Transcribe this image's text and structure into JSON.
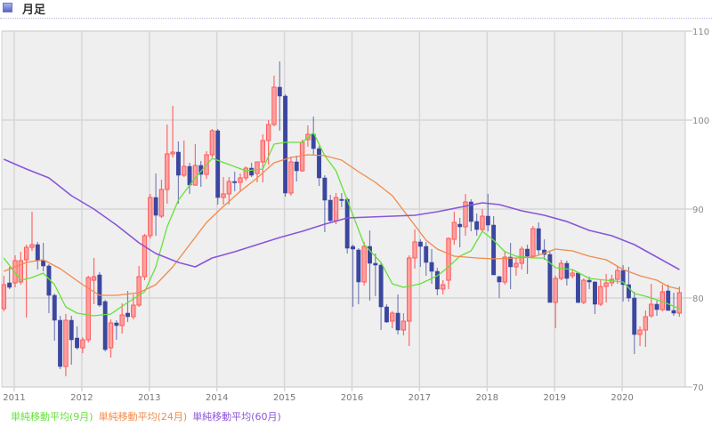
{
  "header": {
    "title": "月足",
    "icon": "chart-panel-icon"
  },
  "chart_data": {
    "type": "candlestick",
    "title": "月足",
    "period": "monthly",
    "start_month": "2010-11",
    "ylim": [
      70,
      110
    ],
    "yticks": [
      70,
      80,
      90,
      100,
      110
    ],
    "xtick_labels": [
      "2011",
      "2012",
      "2013",
      "2014",
      "2015",
      "2016",
      "2017",
      "2018",
      "2019",
      "2020"
    ],
    "grid": true,
    "colors": {
      "up": "#ff5a5a",
      "up_fill": "#ffa0a0",
      "down": "#3b479f",
      "ma9": "#66e03a",
      "ma24": "#f08a4b",
      "ma60": "#8a55d8"
    },
    "ohlc": [
      [
        78.8,
        82.5,
        78.5,
        81.5
      ],
      [
        81.7,
        83.5,
        81.0,
        81.2
      ],
      [
        81.7,
        84.8,
        81.2,
        84.2
      ],
      [
        81.8,
        85.2,
        81.5,
        84.2
      ],
      [
        84.3,
        86.0,
        77.8,
        85.7
      ],
      [
        85.7,
        89.7,
        85.3,
        86.0
      ],
      [
        86.0,
        86.3,
        83.2,
        84.2
      ],
      [
        84.2,
        86.2,
        83.0,
        83.6
      ],
      [
        83.6,
        83.8,
        78.3,
        80.3
      ],
      [
        80.3,
        80.5,
        75.2,
        77.5
      ],
      [
        77.5,
        78.0,
        72.0,
        72.3
      ],
      [
        72.3,
        78.2,
        71.2,
        77.5
      ],
      [
        77.5,
        78.0,
        72.5,
        75.3
      ],
      [
        75.5,
        76.8,
        74.2,
        74.4
      ],
      [
        74.4,
        75.6,
        73.8,
        75.3
      ],
      [
        75.3,
        82.5,
        75.0,
        82.3
      ],
      [
        82.0,
        84.5,
        79.3,
        82.4
      ],
      [
        82.6,
        82.9,
        79.0,
        79.2
      ],
      [
        79.6,
        79.8,
        74.0,
        74.2
      ],
      [
        74.4,
        77.6,
        73.3,
        77.2
      ],
      [
        77.2,
        77.5,
        75.3,
        76.9
      ],
      [
        76.9,
        79.4,
        76.0,
        78.1
      ],
      [
        78.3,
        80.8,
        77.3,
        77.9
      ],
      [
        77.9,
        80.4,
        77.6,
        79.2
      ],
      [
        79.2,
        83.6,
        79.0,
        82.4
      ],
      [
        82.4,
        87.2,
        82.0,
        87.0
      ],
      [
        87.0,
        91.7,
        86.7,
        91.3
      ],
      [
        91.3,
        94.0,
        87.0,
        89.3
      ],
      [
        89.2,
        93.3,
        89.0,
        92.2
      ],
      [
        92.2,
        99.5,
        90.6,
        96.2
      ],
      [
        96.2,
        101.6,
        95.8,
        96.4
      ],
      [
        96.4,
        97.6,
        90.6,
        93.8
      ],
      [
        93.8,
        97.7,
        93.6,
        94.8
      ],
      [
        94.8,
        95.2,
        91.7,
        92.7
      ],
      [
        92.7,
        97.3,
        92.6,
        94.9
      ],
      [
        94.9,
        95.4,
        92.5,
        93.9
      ],
      [
        93.9,
        96.5,
        93.4,
        96.1
      ],
      [
        96.1,
        99.0,
        95.8,
        98.8
      ],
      [
        98.8,
        99.0,
        90.5,
        91.3
      ],
      [
        91.3,
        93.6,
        90.5,
        91.7
      ],
      [
        91.7,
        93.6,
        90.5,
        93.1
      ],
      [
        93.1,
        94.2,
        92.0,
        93.0
      ],
      [
        93.0,
        94.0,
        92.0,
        93.5
      ],
      [
        93.5,
        94.8,
        93.2,
        94.6
      ],
      [
        94.6,
        95.2,
        93.6,
        93.8
      ],
      [
        94.0,
        95.3,
        93.0,
        95.3
      ],
      [
        95.3,
        98.4,
        93.0,
        97.7
      ],
      [
        97.7,
        100.0,
        95.0,
        99.5
      ],
      [
        99.5,
        105.0,
        99.3,
        103.7
      ],
      [
        103.7,
        106.6,
        98.8,
        102.7
      ],
      [
        102.7,
        102.9,
        91.4,
        91.8
      ],
      [
        91.8,
        95.9,
        91.5,
        95.3
      ],
      [
        95.3,
        96.0,
        93.1,
        94.3
      ],
      [
        94.3,
        97.8,
        94.2,
        97.5
      ],
      [
        97.8,
        99.4,
        97.0,
        98.4
      ],
      [
        98.4,
        100.4,
        96.1,
        96.8
      ],
      [
        96.8,
        97.1,
        92.6,
        93.5
      ],
      [
        93.5,
        93.8,
        87.4,
        91.0
      ],
      [
        91.0,
        91.6,
        88.4,
        88.7
      ],
      [
        88.7,
        91.8,
        88.3,
        91.3
      ],
      [
        91.1,
        91.8,
        90.2,
        91.0
      ],
      [
        91.1,
        91.3,
        85.0,
        85.6
      ],
      [
        85.8,
        86.0,
        79.0,
        85.5
      ],
      [
        85.4,
        85.6,
        79.3,
        81.8
      ],
      [
        81.8,
        86.3,
        81.4,
        85.8
      ],
      [
        85.8,
        87.6,
        79.7,
        83.9
      ],
      [
        83.9,
        85.0,
        80.2,
        83.7
      ],
      [
        83.7,
        84.0,
        76.4,
        79.0
      ],
      [
        79.0,
        79.3,
        77.2,
        77.3
      ],
      [
        77.4,
        78.5,
        76.6,
        78.3
      ],
      [
        78.3,
        80.4,
        75.9,
        76.4
      ],
      [
        76.4,
        78.3,
        75.8,
        77.4
      ],
      [
        77.4,
        84.8,
        74.6,
        84.5
      ],
      [
        84.5,
        87.7,
        83.3,
        86.3
      ],
      [
        86.3,
        86.6,
        83.5,
        85.8
      ],
      [
        85.8,
        86.3,
        82.5,
        84.0
      ],
      [
        84.0,
        85.5,
        81.6,
        83.0
      ],
      [
        83.0,
        83.4,
        80.3,
        81.0
      ],
      [
        81.0,
        82.0,
        80.4,
        81.5
      ],
      [
        82.0,
        86.8,
        81.0,
        86.7
      ],
      [
        86.6,
        89.7,
        86.0,
        88.5
      ],
      [
        88.3,
        89.0,
        85.7,
        88.0
      ],
      [
        88.0,
        91.7,
        87.0,
        90.8
      ],
      [
        90.8,
        91.1,
        87.5,
        88.6
      ],
      [
        88.6,
        89.5,
        87.0,
        87.7
      ],
      [
        87.7,
        90.0,
        87.5,
        89.2
      ],
      [
        89.2,
        91.7,
        87.5,
        88.2
      ],
      [
        88.2,
        89.2,
        82.6,
        82.6
      ],
      [
        82.4,
        82.5,
        80.0,
        81.8
      ],
      [
        81.8,
        85.3,
        81.5,
        84.6
      ],
      [
        84.6,
        86.2,
        81.0,
        83.5
      ],
      [
        83.5,
        84.5,
        82.5,
        83.9
      ],
      [
        83.9,
        85.8,
        83.2,
        85.5
      ],
      [
        85.5,
        86.0,
        82.7,
        84.7
      ],
      [
        84.7,
        88.1,
        84.5,
        87.8
      ],
      [
        87.8,
        88.5,
        84.8,
        85.4
      ],
      [
        85.4,
        86.6,
        84.3,
        84.9
      ],
      [
        84.9,
        85.3,
        79.5,
        79.5
      ],
      [
        79.5,
        82.5,
        76.6,
        82.2
      ],
      [
        82.2,
        84.3,
        82.0,
        83.9
      ],
      [
        83.9,
        84.2,
        81.4,
        82.2
      ],
      [
        82.5,
        83.2,
        82.2,
        82.8
      ],
      [
        82.8,
        82.9,
        79.4,
        79.5
      ],
      [
        79.5,
        82.2,
        79.3,
        82.0
      ],
      [
        82.0,
        82.4,
        81.0,
        81.8
      ],
      [
        81.8,
        81.9,
        78.2,
        79.3
      ],
      [
        79.3,
        82.1,
        79.1,
        81.3
      ],
      [
        81.3,
        82.7,
        79.5,
        81.7
      ],
      [
        81.7,
        82.6,
        81.3,
        82.1
      ],
      [
        82.1,
        83.5,
        81.6,
        83.1
      ],
      [
        83.1,
        83.7,
        79.6,
        81.5
      ],
      [
        81.5,
        83.5,
        79.6,
        80.0
      ],
      [
        80.0,
        80.7,
        73.7,
        75.9
      ],
      [
        75.9,
        76.8,
        74.6,
        76.4
      ],
      [
        76.4,
        78.6,
        74.5,
        77.9
      ],
      [
        78.0,
        81.6,
        77.8,
        79.3
      ],
      [
        79.3,
        79.7,
        78.0,
        78.7
      ],
      [
        78.7,
        81.5,
        78.5,
        80.7
      ],
      [
        80.8,
        81.5,
        78.6,
        78.6
      ],
      [
        78.6,
        80.6,
        78.0,
        78.3
      ],
      [
        78.3,
        81.3,
        77.9,
        80.6
      ]
    ],
    "series": [
      {
        "name": "単純移動平均(9月)",
        "key": "ma9",
        "points": [
          [
            0,
            84.5
          ],
          [
            3,
            82.0
          ],
          [
            5,
            82.3
          ],
          [
            7,
            82.8
          ],
          [
            9,
            81.5
          ],
          [
            11,
            79.0
          ],
          [
            13,
            78.3
          ],
          [
            16,
            78.0
          ],
          [
            19,
            78.2
          ],
          [
            22,
            79.5
          ],
          [
            25,
            80.7
          ],
          [
            27,
            83.5
          ],
          [
            29,
            88.0
          ],
          [
            31,
            91.0
          ],
          [
            34,
            93.5
          ],
          [
            37,
            95.7
          ],
          [
            40,
            95.0
          ],
          [
            43,
            94.3
          ],
          [
            46,
            94.5
          ],
          [
            48,
            97.3
          ],
          [
            50,
            97.5
          ],
          [
            53,
            97.5
          ],
          [
            55,
            98.6
          ],
          [
            57,
            96.0
          ],
          [
            59,
            94.3
          ],
          [
            61,
            91.0
          ],
          [
            64,
            86.0
          ],
          [
            67,
            84.0
          ],
          [
            69,
            81.6
          ],
          [
            71,
            81.2
          ],
          [
            74,
            81.6
          ],
          [
            77,
            82.5
          ],
          [
            79,
            83.5
          ],
          [
            81,
            84.7
          ],
          [
            83,
            85.3
          ],
          [
            85,
            87.5
          ],
          [
            87,
            86.5
          ],
          [
            89,
            85.2
          ],
          [
            91,
            84.7
          ],
          [
            94,
            84.5
          ],
          [
            96,
            84.5
          ],
          [
            98,
            83.4
          ],
          [
            101,
            83.2
          ],
          [
            104,
            82.2
          ],
          [
            107,
            82.0
          ],
          [
            110,
            81.8
          ],
          [
            112,
            80.5
          ],
          [
            114,
            80.2
          ],
          [
            117,
            79.6
          ],
          [
            120,
            78.8
          ]
        ]
      },
      {
        "name": "単純移動平均(24月)",
        "key": "ma24",
        "points": [
          [
            0,
            83.0
          ],
          [
            4,
            84.0
          ],
          [
            7,
            84.3
          ],
          [
            10,
            83.3
          ],
          [
            14,
            81.5
          ],
          [
            17,
            80.3
          ],
          [
            20,
            80.3
          ],
          [
            24,
            80.6
          ],
          [
            27,
            81.5
          ],
          [
            30,
            83.5
          ],
          [
            33,
            86.0
          ],
          [
            36,
            88.5
          ],
          [
            39,
            90.3
          ],
          [
            42,
            92.0
          ],
          [
            45,
            93.5
          ],
          [
            48,
            95.2
          ],
          [
            51,
            95.8
          ],
          [
            54,
            96.1
          ],
          [
            57,
            96.0
          ],
          [
            60,
            95.5
          ],
          [
            63,
            94.2
          ],
          [
            66,
            93.0
          ],
          [
            69,
            91.5
          ],
          [
            72,
            89.0
          ],
          [
            75,
            86.5
          ],
          [
            77,
            85.5
          ],
          [
            80,
            84.7
          ],
          [
            84,
            84.5
          ],
          [
            87,
            84.4
          ],
          [
            91,
            84.5
          ],
          [
            94,
            84.6
          ],
          [
            98,
            85.5
          ],
          [
            101,
            85.3
          ],
          [
            104,
            84.7
          ],
          [
            107,
            84.3
          ],
          [
            110,
            83.2
          ],
          [
            113,
            82.5
          ],
          [
            116,
            82.0
          ],
          [
            118,
            81.3
          ],
          [
            120,
            81.0
          ]
        ]
      },
      {
        "name": "単純移動平均(60月)",
        "key": "ma60",
        "points": [
          [
            0,
            95.6
          ],
          [
            4,
            94.5
          ],
          [
            8,
            93.5
          ],
          [
            12,
            91.5
          ],
          [
            16,
            90.0
          ],
          [
            20,
            88.2
          ],
          [
            24,
            86.2
          ],
          [
            27,
            85.0
          ],
          [
            31,
            84.0
          ],
          [
            34,
            83.5
          ],
          [
            37,
            84.5
          ],
          [
            41,
            85.2
          ],
          [
            45,
            86.0
          ],
          [
            49,
            86.8
          ],
          [
            53,
            87.5
          ],
          [
            57,
            88.3
          ],
          [
            61,
            89.0
          ],
          [
            65,
            89.1
          ],
          [
            69,
            89.2
          ],
          [
            73,
            89.3
          ],
          [
            77,
            89.7
          ],
          [
            81,
            90.2
          ],
          [
            85,
            90.7
          ],
          [
            88,
            90.5
          ],
          [
            92,
            89.8
          ],
          [
            96,
            89.3
          ],
          [
            100,
            88.6
          ],
          [
            104,
            87.6
          ],
          [
            108,
            87.0
          ],
          [
            112,
            86.0
          ],
          [
            116,
            84.6
          ],
          [
            120,
            83.2
          ]
        ]
      }
    ],
    "legend": {
      "placement": "bottom-left"
    }
  }
}
